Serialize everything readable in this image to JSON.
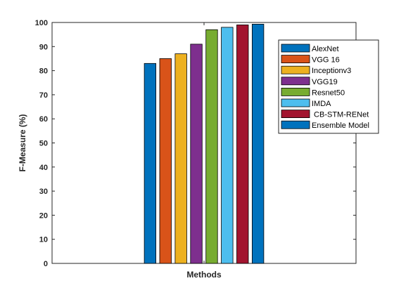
{
  "chart_data": {
    "type": "bar",
    "title": "",
    "xlabel": "Methods",
    "ylabel": "F-Measure (%)",
    "ylim": [
      0,
      100
    ],
    "yticks": [
      0,
      10,
      20,
      30,
      40,
      50,
      60,
      70,
      80,
      90,
      100
    ],
    "grid": false,
    "legend_position": "top-right",
    "series": [
      {
        "name": "AlexNet",
        "value": 83,
        "color": "#0072BD"
      },
      {
        "name": "VGG 16",
        "value": 85,
        "color": "#D95319"
      },
      {
        "name": "Inceptionv3",
        "value": 87,
        "color": "#EDB120"
      },
      {
        "name": "VGG19",
        "value": 91,
        "color": "#7E2F8E"
      },
      {
        "name": "Resnet50",
        "value": 97,
        "color": "#77AC30"
      },
      {
        "name": "IMDA",
        "value": 98,
        "color": "#4DBEEE"
      },
      {
        "name": " CB-STM-RENet",
        "value": 99,
        "color": "#A2142F"
      },
      {
        "name": "Ensemble Model",
        "value": 99.3,
        "color": "#0072BD"
      }
    ]
  }
}
